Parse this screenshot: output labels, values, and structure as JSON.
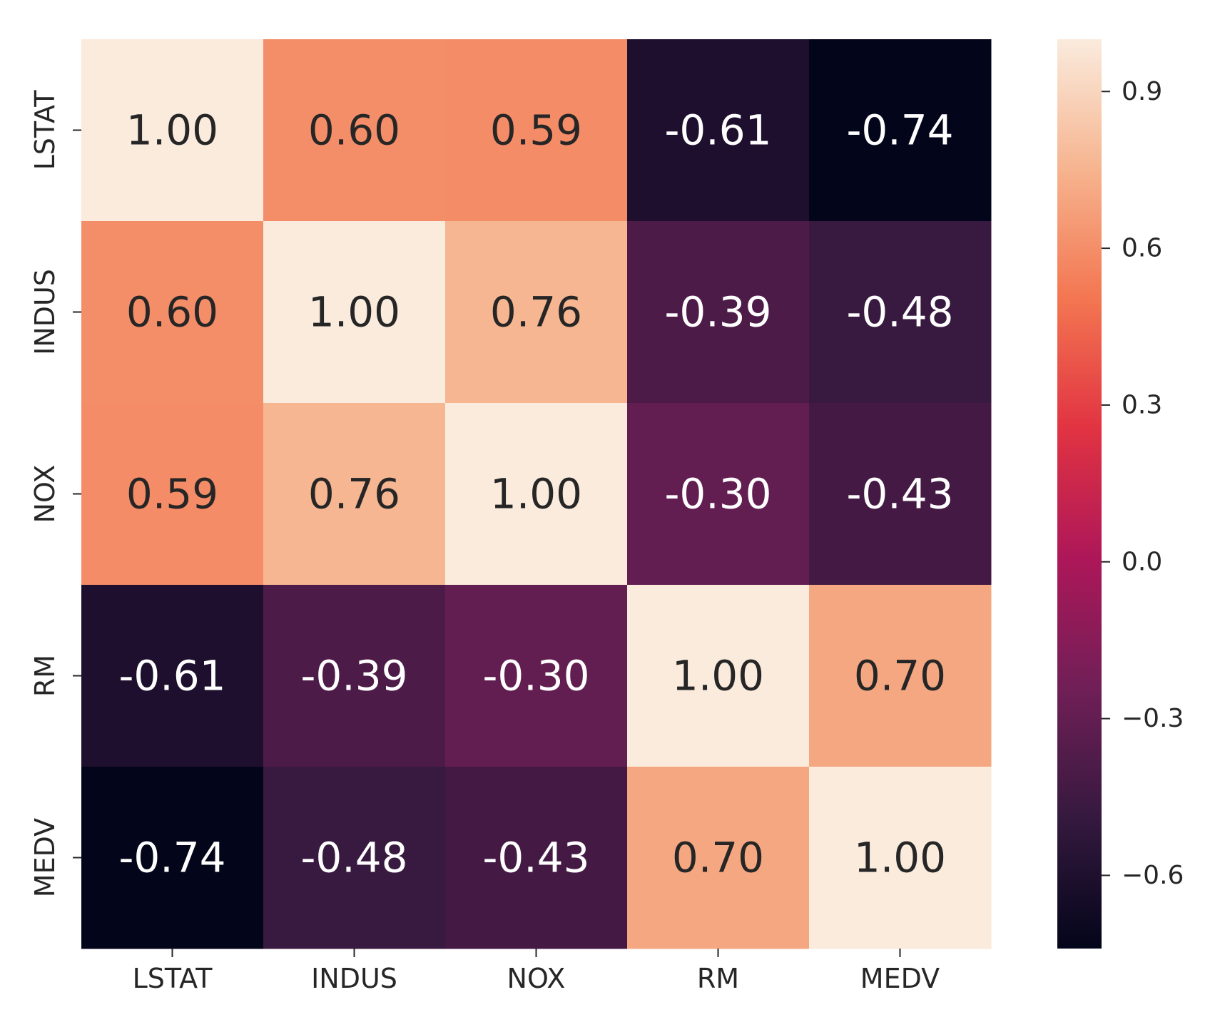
{
  "chart_data": {
    "type": "heatmap",
    "x_categories": [
      "LSTAT",
      "INDUS",
      "NOX",
      "RM",
      "MEDV"
    ],
    "y_categories": [
      "LSTAT",
      "INDUS",
      "NOX",
      "RM",
      "MEDV"
    ],
    "values": [
      [
        1.0,
        0.6,
        0.59,
        -0.61,
        -0.74
      ],
      [
        0.6,
        1.0,
        0.76,
        -0.39,
        -0.48
      ],
      [
        0.59,
        0.76,
        1.0,
        -0.3,
        -0.43
      ],
      [
        -0.61,
        -0.39,
        -0.3,
        1.0,
        0.7
      ],
      [
        -0.74,
        -0.48,
        -0.43,
        0.7,
        1.0
      ]
    ],
    "cell_labels": [
      [
        "1.00",
        "0.60",
        "0.59",
        "-0.61",
        "-0.74"
      ],
      [
        "0.60",
        "1.00",
        "0.76",
        "-0.39",
        "-0.48"
      ],
      [
        "0.59",
        "0.76",
        "1.00",
        "-0.30",
        "-0.43"
      ],
      [
        "-0.61",
        "-0.39",
        "-0.30",
        "1.00",
        "0.70"
      ],
      [
        "-0.74",
        "-0.48",
        "-0.43",
        "0.70",
        "1.00"
      ]
    ],
    "colorbar": {
      "range": [
        -0.74,
        1.0
      ],
      "ticks": [
        0.9,
        0.6,
        0.3,
        0.0,
        -0.3,
        -0.6
      ],
      "tick_labels": [
        "0.9",
        "0.6",
        "0.3",
        "0.0",
        "−0.3",
        "−0.6"
      ]
    },
    "colormap": "rocket",
    "colormap_stops": [
      "#03051a",
      "#35193e",
      "#701f57",
      "#ad1759",
      "#e13342",
      "#f37651",
      "#f6b48f",
      "#faebdd"
    ],
    "annotation_colors": {
      "on_light": "#262626",
      "on_dark": "#ffffff"
    }
  }
}
